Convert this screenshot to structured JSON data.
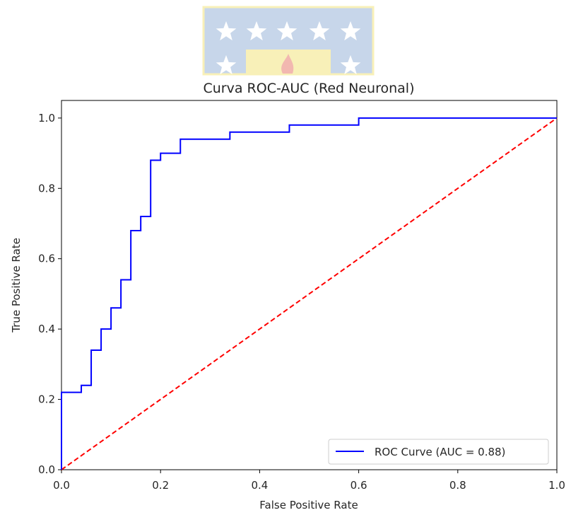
{
  "chart_data": {
    "type": "line",
    "title": "Curva ROC-AUC (Red Neuronal)",
    "xlabel": "False Positive Rate",
    "ylabel": "True Positive Rate",
    "xlim": [
      0.0,
      1.0
    ],
    "ylim": [
      0.0,
      1.05
    ],
    "xticks": [
      0.0,
      0.2,
      0.4,
      0.6,
      0.8,
      1.0
    ],
    "yticks": [
      0.0,
      0.2,
      0.4,
      0.6,
      0.8,
      1.0
    ],
    "xtick_labels": [
      "0.0",
      "0.2",
      "0.4",
      "0.6",
      "0.8",
      "1.0"
    ],
    "ytick_labels": [
      "0.0",
      "0.2",
      "0.4",
      "0.6",
      "0.8",
      "1.0"
    ],
    "grid": false,
    "legend_position": "lower right",
    "series": [
      {
        "name": "ROC Curve (AUC = 0.88)",
        "color": "#0000ff",
        "style": "solid",
        "x": [
          0.0,
          0.0,
          0.04,
          0.04,
          0.06,
          0.06,
          0.08,
          0.08,
          0.1,
          0.1,
          0.12,
          0.12,
          0.14,
          0.14,
          0.16,
          0.16,
          0.18,
          0.18,
          0.2,
          0.2,
          0.24,
          0.24,
          0.34,
          0.34,
          0.46,
          0.46,
          0.6,
          0.6,
          1.0
        ],
        "y": [
          0.0,
          0.22,
          0.22,
          0.24,
          0.24,
          0.34,
          0.34,
          0.4,
          0.4,
          0.46,
          0.46,
          0.54,
          0.54,
          0.68,
          0.68,
          0.72,
          0.72,
          0.88,
          0.88,
          0.9,
          0.9,
          0.94,
          0.94,
          0.96,
          0.96,
          0.98,
          0.98,
          1.0,
          1.0
        ]
      },
      {
        "color": "#ff0000",
        "style": "dashed",
        "x": [
          0.0,
          1.0
        ],
        "y": [
          0.0,
          1.0
        ]
      }
    ]
  },
  "watermark": {
    "description": "university crest watermark",
    "colors": {
      "blue": "#c7d6ea",
      "yellow": "#f8f0b8",
      "flame": "#f2b8b0"
    }
  }
}
